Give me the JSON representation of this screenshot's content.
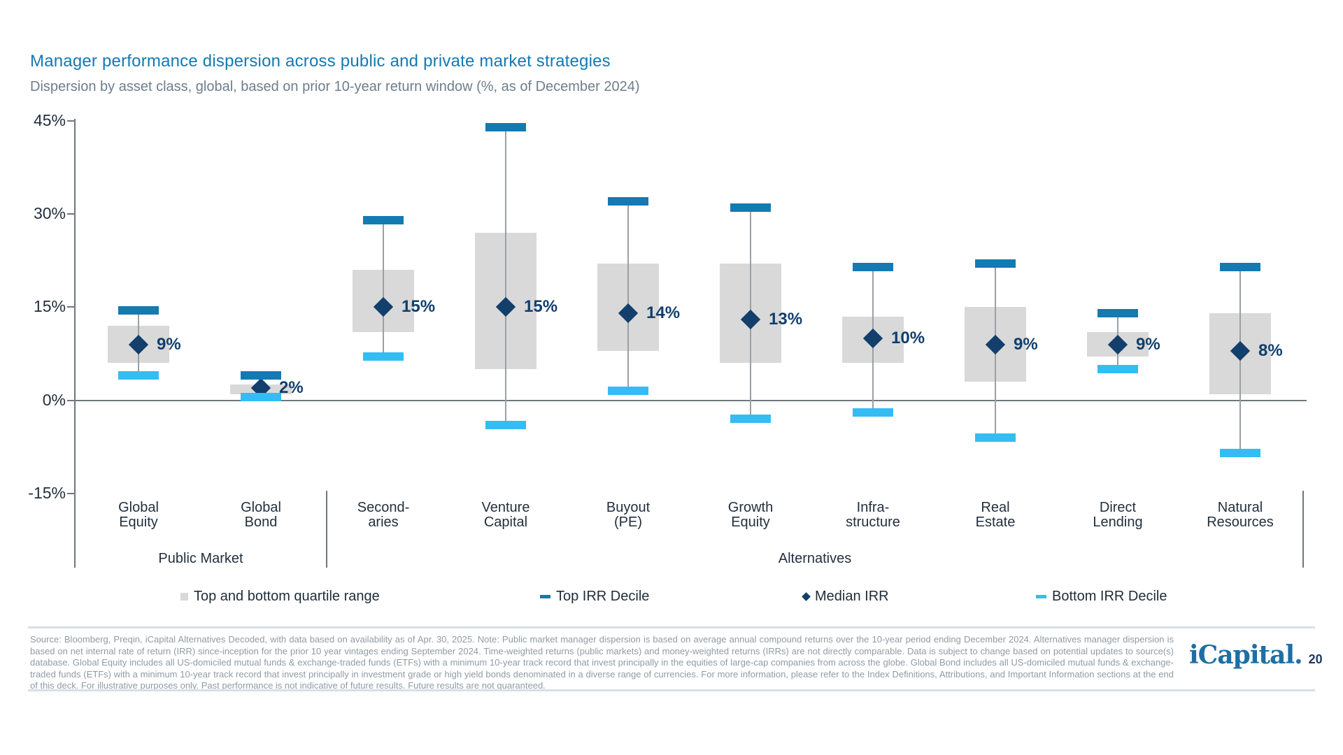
{
  "title": "Manager performance dispersion across public and private market strategies",
  "subtitle": "Dispersion by asset class, global, based on prior 10-year return window (%, as of December 2024)",
  "chart_data": {
    "type": "boxplot",
    "unit": "%",
    "ylim": [
      -15,
      45
    ],
    "grid": "zero-line-only",
    "yticks": [
      {
        "label": "45%",
        "value": 45
      },
      {
        "label": "30%",
        "value": 30
      },
      {
        "label": "15%",
        "value": 15
      },
      {
        "label": "0%",
        "value": 0
      },
      {
        "label": "-15%",
        "value": -15
      }
    ],
    "columns": [
      {
        "name": [
          "Global",
          "Equity"
        ],
        "group": "Public Market",
        "top_decile": 14.5,
        "upper_quartile": 12,
        "median": 9,
        "median_label": "9%",
        "lower_quartile": 6,
        "bottom_decile": 4
      },
      {
        "name": [
          "Global",
          "Bond"
        ],
        "group": "Public Market",
        "top_decile": 4,
        "upper_quartile": 2.5,
        "median": 2,
        "median_label": "2%",
        "lower_quartile": 1,
        "bottom_decile": 0.5
      },
      {
        "name": [
          "Second-",
          "aries"
        ],
        "group": "Alternatives",
        "top_decile": 29,
        "upper_quartile": 21,
        "median": 15,
        "median_label": "15%",
        "lower_quartile": 11,
        "bottom_decile": 7
      },
      {
        "name": [
          "Venture",
          "Capital"
        ],
        "group": "Alternatives",
        "top_decile": 44,
        "upper_quartile": 27,
        "median": 15,
        "median_label": "15%",
        "lower_quartile": 5,
        "bottom_decile": -4
      },
      {
        "name": [
          "Buyout",
          "(PE)"
        ],
        "group": "Alternatives",
        "top_decile": 32,
        "upper_quartile": 22,
        "median": 14,
        "median_label": "14%",
        "lower_quartile": 8,
        "bottom_decile": 1.5
      },
      {
        "name": [
          "Growth",
          "Equity"
        ],
        "group": "Alternatives",
        "top_decile": 31,
        "upper_quartile": 22,
        "median": 13,
        "median_label": "13%",
        "lower_quartile": 6,
        "bottom_decile": -3
      },
      {
        "name": [
          "Infra-",
          "structure"
        ],
        "group": "Alternatives",
        "top_decile": 21.5,
        "upper_quartile": 13.5,
        "median": 10,
        "median_label": "10%",
        "lower_quartile": 6,
        "bottom_decile": -2
      },
      {
        "name": [
          "Real",
          "Estate"
        ],
        "group": "Alternatives",
        "top_decile": 22,
        "upper_quartile": 15,
        "median": 9,
        "median_label": "9%",
        "lower_quartile": 3,
        "bottom_decile": -6
      },
      {
        "name": [
          "Direct",
          "Lending"
        ],
        "group": "Alternatives",
        "top_decile": 14,
        "upper_quartile": 11,
        "median": 9,
        "median_label": "9%",
        "lower_quartile": 7,
        "bottom_decile": 5
      },
      {
        "name": [
          "Natural",
          "Resources"
        ],
        "group": "Alternatives",
        "top_decile": 21.5,
        "upper_quartile": 14,
        "median": 8,
        "median_label": "8%",
        "lower_quartile": 1,
        "bottom_decile": -8.5
      }
    ],
    "groups": [
      {
        "label": "Public Market",
        "columns": [
          0,
          1
        ]
      },
      {
        "label": "Alternatives",
        "columns": [
          2,
          9
        ]
      }
    ],
    "legend": [
      {
        "symbol": "quartile-box",
        "label": "Top and bottom quartile range"
      },
      {
        "symbol": "top-decile-dash",
        "label": "Top IRR Decile"
      },
      {
        "symbol": "median-diamond",
        "label": "Median IRR"
      },
      {
        "symbol": "bottom-decile-dash",
        "label": "Bottom IRR Decile"
      }
    ],
    "legend_position": "bottom"
  },
  "colors": {
    "title_blue": "#137ab2",
    "top_decile_blue": "#137ab2",
    "bottom_decile_blue": "#33bdf2",
    "median_navy": "#123f6b",
    "quartile_gray": "#d9d9d9"
  },
  "footnote": "Source: Bloomberg, Preqin, iCapital Alternatives Decoded, with data based on availability as of Apr. 30, 2025. Note: Public market manager dispersion is based on average annual compound returns over the 10-year period ending December 2024. Alternatives manager dispersion is based on net internal rate of return (IRR) since-inception for the prior 10 year vintages ending September 2024. Time-weighted returns (public markets) and money-weighted returns (IRRs) are not directly comparable. Data is subject to change based on potential updates to source(s) database. Global Equity includes all US-domiciled mutual funds & exchange-traded funds (ETFs) with a minimum 10-year track record that invest principally in the equities of large-cap companies from across the globe. Global Bond includes all US-domiciled mutual funds & exchange-traded funds (ETFs) with a minimum 10-year track record that invest principally in investment grade or high yield bonds denominated in a diverse range of currencies. For more information, please refer to the Index Definitions, Attributions, and Important Information sections at the end of this deck. For illustrative purposes only. Past performance is not indicative of future results. Future results are not guaranteed.",
  "logo": {
    "name": "iCapital.",
    "page": "20"
  }
}
